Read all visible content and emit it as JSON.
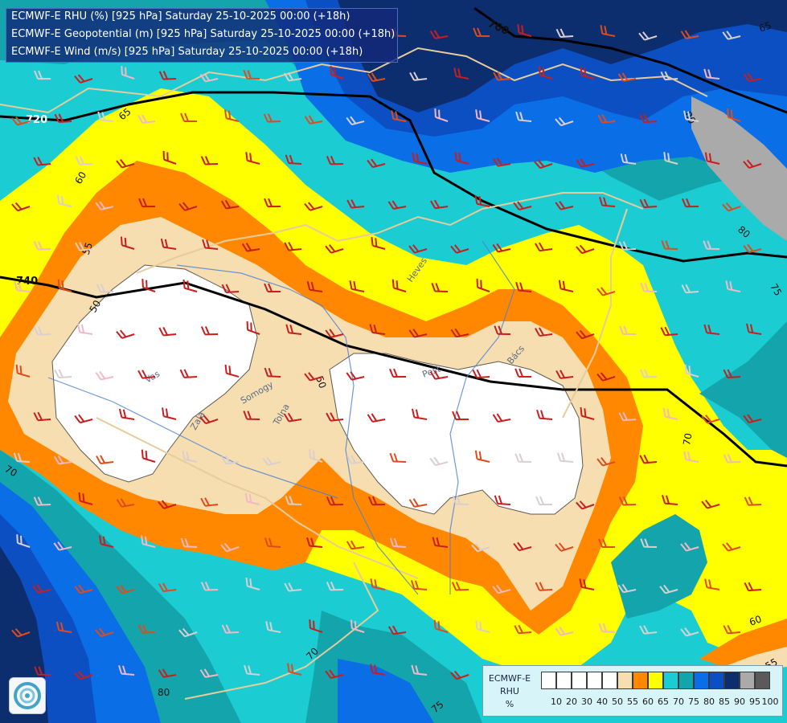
{
  "titles": {
    "line1": "ECMWF-E RHU (%) [925 hPa] Saturday 25-10-2025 00:00 (+18h)",
    "line2": "ECMWF-E Geopotential (m) [925 hPa] Saturday 25-10-2025 00:00 (+18h)",
    "line3": "ECMWF-E Wind (m/s) [925 hPa] Saturday 25-10-2025 00:00 (+18h)"
  },
  "legend": {
    "line1": "ECMWF-E",
    "line2": "RHU",
    "line3": "%",
    "ticks": [
      "10",
      "20",
      "30",
      "40",
      "50",
      "55",
      "60",
      "65",
      "70",
      "75",
      "80",
      "85",
      "90",
      "95",
      "100"
    ],
    "colors": [
      "#ffffff",
      "#ffffff",
      "#ffffff",
      "#ffffff",
      "#ffffff",
      "#f7deb0",
      "#ff8800",
      "#ffff00",
      "#1bcdd3",
      "#14a5ac",
      "#0a6ee6",
      "#0b4fc2",
      "#0c2d6e",
      "#aaaaaa",
      "#5a5a5a"
    ]
  },
  "map": {
    "geopotential_labels": [
      "700",
      "720",
      "740"
    ],
    "rhu_labels": [
      "50",
      "50",
      "55",
      "60",
      "65",
      "70",
      "70",
      "70",
      "75",
      "75",
      "80",
      "80",
      "80",
      "60",
      "65",
      "55"
    ],
    "place_labels": [
      "Vas",
      "Zala",
      "Somogy",
      "Tolna",
      "Pest",
      "Heves",
      "Bács"
    ],
    "colors": {
      "white": "#ffffff",
      "cream": "#f7deb0",
      "orange": "#ff8800",
      "yellow": "#ffff00",
      "cyan": "#1bcdd3",
      "teal": "#14a5ac",
      "blue": "#0a6ee6",
      "darkblue": "#0b4fc2",
      "navy": "#0c2d6e",
      "grey": "#aaaaaa"
    }
  }
}
